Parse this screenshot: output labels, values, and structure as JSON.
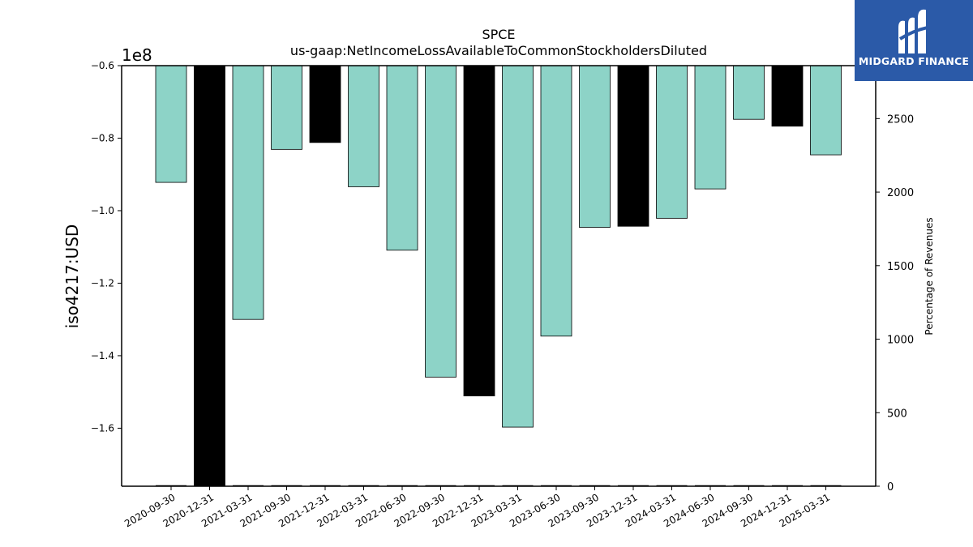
{
  "logo": {
    "text": "MIDGARD FINANCE",
    "color": "#2b5aa8"
  },
  "chart_data": {
    "type": "bar",
    "title": "SPCE",
    "subtitle": "us-gaap:NetIncomeLossAvailableToCommonStockholdersDiluted",
    "ylabel": "iso4217:USD",
    "y_offset_label": "1e8",
    "y2label": "Percentage of Revenues",
    "ylim": [
      -1.76,
      -0.6
    ],
    "y2lim": [
      0,
      2860
    ],
    "yticks": [
      "−0.6",
      "−0.8",
      "−1.0",
      "−1.2",
      "−1.4",
      "−1.6"
    ],
    "yticks_values": [
      -0.6,
      -0.8,
      -1.0,
      -1.2,
      -1.4,
      -1.6
    ],
    "y2ticks": [
      "0",
      "500",
      "1000",
      "1500",
      "2000",
      "2500"
    ],
    "y2ticks_values": [
      0,
      500,
      1000,
      1500,
      2000,
      2500
    ],
    "categories": [
      "2020-09-30",
      "2020-12-31",
      "2021-03-31",
      "2021-09-30",
      "2021-12-31",
      "2022-03-31",
      "2022-06-30",
      "2022-09-30",
      "2022-12-31",
      "2023-03-31",
      "2023-06-30",
      "2023-09-30",
      "2023-12-31",
      "2024-03-31",
      "2024-06-30",
      "2024-09-30",
      "2024-12-31",
      "2025-03-31"
    ],
    "values": [
      -0.922,
      -1.76,
      -1.3,
      -0.831,
      -0.812,
      -0.934,
      -1.109,
      -1.459,
      -1.511,
      -1.597,
      -1.346,
      -1.046,
      -1.043,
      -1.021,
      -0.94,
      -0.748,
      -0.767,
      -0.846
    ],
    "colors": [
      "#8dd3c7",
      "#000000",
      "#8dd3c7",
      "#8dd3c7",
      "#000000",
      "#8dd3c7",
      "#8dd3c7",
      "#8dd3c7",
      "#000000",
      "#8dd3c7",
      "#8dd3c7",
      "#8dd3c7",
      "#000000",
      "#8dd3c7",
      "#8dd3c7",
      "#8dd3c7",
      "#000000",
      "#8dd3c7"
    ],
    "pct_revenue": [
      0,
      0,
      0,
      0,
      0,
      0,
      0,
      0,
      0,
      0,
      0,
      0,
      0,
      0,
      0,
      0,
      0,
      0
    ],
    "grid": false,
    "legend": "none"
  }
}
